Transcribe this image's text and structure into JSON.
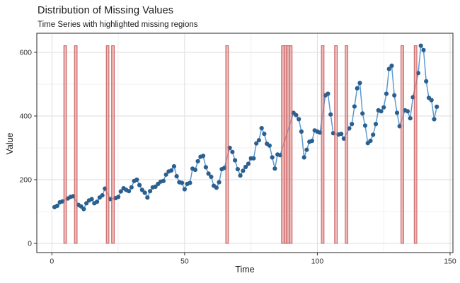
{
  "chart_data": {
    "type": "line",
    "title": "Distribution of Missing Values",
    "subtitle": "Time Series with highlighted missing regions",
    "xlabel": "Time",
    "ylabel": "Value",
    "xlim": [
      -5.7,
      151.1
    ],
    "ylim": [
      -27,
      660
    ],
    "x_major_ticks": [
      0,
      50,
      100,
      150
    ],
    "x_minor_gridlines": [
      25,
      75,
      125
    ],
    "y_major_ticks": [
      0,
      200,
      400,
      600
    ],
    "y_minor_gridlines": [
      100,
      300,
      500
    ],
    "grid": true,
    "legend_position": "none",
    "x_start": 1,
    "series": [
      {
        "name": "value",
        "values": [
          114,
          118,
          129,
          132,
          null,
          141,
          146,
          148,
          null,
          121,
          116,
          108,
          126,
          135,
          139,
          126,
          131,
          144,
          151,
          172,
          null,
          139,
          null,
          142,
          146,
          163,
          173,
          168,
          164,
          176,
          196,
          200,
          183,
          168,
          159,
          144,
          164,
          176,
          178,
          187,
          194,
          196,
          216,
          226,
          229,
          242,
          211,
          192,
          190,
          170,
          187,
          190,
          235,
          231,
          258,
          272,
          275,
          239,
          219,
          209,
          181,
          175,
          192,
          233,
          237,
          null,
          300,
          287,
          261,
          233,
          213,
          228,
          240,
          250,
          267,
          267,
          314,
          324,
          362,
          344,
          313,
          307,
          270,
          235,
          279,
          277,
          null,
          null,
          null,
          null,
          410,
          403,
          390,
          351,
          270,
          294,
          319,
          322,
          355,
          351,
          348,
          null,
          465,
          470,
          405,
          346,
          null,
          342,
          344,
          329,
          null,
          361,
          375,
          430,
          487,
          504,
          408,
          370,
          315,
          322,
          341,
          375,
          418,
          415,
          427,
          470,
          548,
          558,
          465,
          410,
          368,
          null,
          418,
          415,
          393,
          459,
          null,
          535,
          621,
          607,
          509,
          457,
          450,
          390,
          429
        ]
      }
    ],
    "missing_times": [
      5,
      9,
      21,
      23,
      66,
      87,
      88,
      89,
      90,
      102,
      107,
      111,
      132,
      137
    ],
    "missing_bar_value_range": [
      0,
      621
    ],
    "colors": {
      "point": "#2b5f8e",
      "line": "#5b9ad2",
      "bar_fill": "#e08d8d",
      "bar_fill_opacity": 0.62,
      "bar_stroke": "#c24f4f",
      "grid_major": "#dedede",
      "grid_minor": "#efefef",
      "panel_border": "#4a4a4a",
      "tick_mark": "#333333",
      "text": "#1a1a1a"
    },
    "x_tick_labels": [
      "0",
      "50",
      "100",
      "150"
    ],
    "y_tick_labels": [
      "0",
      "200",
      "400",
      "600"
    ]
  }
}
